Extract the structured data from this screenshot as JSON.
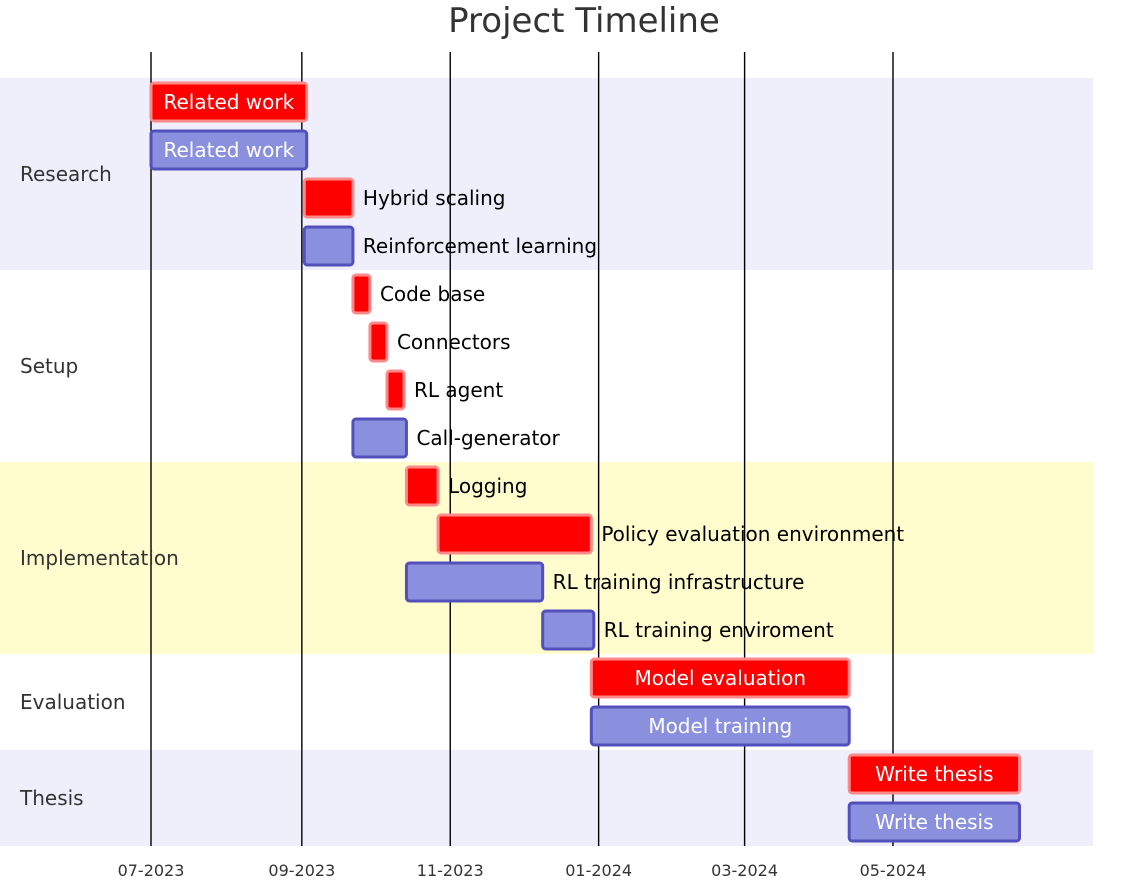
{
  "chart_data": {
    "type": "gantt",
    "title": "Project Timeline",
    "colors": {
      "crit_fill": "#ff0000",
      "crit_stroke": "#ff8888",
      "task_fill": "#8a90dd",
      "task_stroke": "#534fbc",
      "section_alt_1": "#efeffb",
      "section_alt_2": "#ffffff",
      "section_alt_3": "#fffcce",
      "label_inside": "#ffffff",
      "label_outside": "#000000",
      "grid": "#000000"
    },
    "x_axis": {
      "type": "date",
      "range": [
        "2023-06-12",
        "2024-07-29"
      ],
      "ticks": [
        "07-2023",
        "09-2023",
        "11-2023",
        "01-2024",
        "03-2024",
        "05-2024"
      ],
      "tick_dates": [
        "2023-07-01",
        "2023-09-01",
        "2023-11-01",
        "2024-01-01",
        "2024-03-01",
        "2024-05-01"
      ]
    },
    "sections": [
      {
        "name": "Research",
        "shade": "section_alt_1",
        "tasks": [
          {
            "name": "Related work",
            "start": "2023-07-01",
            "end": "2023-09-03",
            "crit": true
          },
          {
            "name": "Related work",
            "start": "2023-07-01",
            "end": "2023-09-03",
            "crit": false
          },
          {
            "name": "Hybrid scaling",
            "start": "2023-09-02",
            "end": "2023-09-22",
            "crit": true
          },
          {
            "name": "Reinforcement learning",
            "start": "2023-09-02",
            "end": "2023-09-22",
            "crit": false
          }
        ]
      },
      {
        "name": "Setup",
        "shade": "section_alt_2",
        "tasks": [
          {
            "name": "Code base",
            "start": "2023-09-22",
            "end": "2023-09-29",
            "crit": true
          },
          {
            "name": "Connectors",
            "start": "2023-09-29",
            "end": "2023-10-06",
            "crit": true
          },
          {
            "name": "RL agent",
            "start": "2023-10-06",
            "end": "2023-10-13",
            "crit": true
          },
          {
            "name": "Call-generator",
            "start": "2023-09-22",
            "end": "2023-10-14",
            "crit": false
          }
        ]
      },
      {
        "name": "Implementation",
        "shade": "section_alt_3",
        "tasks": [
          {
            "name": "Logging",
            "start": "2023-10-14",
            "end": "2023-10-27",
            "crit": true
          },
          {
            "name": "Policy evaluation environment",
            "start": "2023-10-27",
            "end": "2023-12-29",
            "crit": true
          },
          {
            "name": "RL training infrastructure",
            "start": "2023-10-14",
            "end": "2023-12-09",
            "crit": false
          },
          {
            "name": "RL training enviroment",
            "start": "2023-12-09",
            "end": "2023-12-30",
            "crit": false
          }
        ]
      },
      {
        "name": "Evaluation",
        "shade": "section_alt_2",
        "tasks": [
          {
            "name": "Model evaluation",
            "start": "2023-12-29",
            "end": "2024-04-13",
            "crit": true
          },
          {
            "name": "Model training",
            "start": "2023-12-29",
            "end": "2024-04-13",
            "crit": false
          }
        ]
      },
      {
        "name": "Thesis",
        "shade": "section_alt_1",
        "tasks": [
          {
            "name": "Write thesis",
            "start": "2024-04-13",
            "end": "2024-06-22",
            "crit": true
          },
          {
            "name": "Write thesis",
            "start": "2024-04-13",
            "end": "2024-06-22",
            "crit": false
          }
        ]
      }
    ]
  }
}
